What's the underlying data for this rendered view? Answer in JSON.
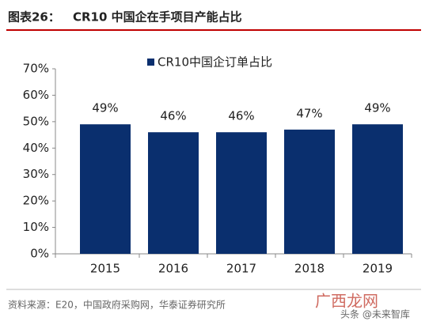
{
  "chart_data": {
    "type": "bar",
    "figure_label": "图表26：",
    "title": "CR10 中国企在手项目产能占比",
    "categories": [
      "2015",
      "2016",
      "2017",
      "2018",
      "2019"
    ],
    "series": [
      {
        "name": "CR10中国企订单占比",
        "color": "#0a2f6e",
        "values": [
          49,
          46,
          46,
          47,
          49
        ],
        "value_labels": [
          "49%",
          "46%",
          "46%",
          "47%",
          "49%"
        ]
      }
    ],
    "ylim": [
      0,
      70
    ],
    "yticks": [
      {
        "value": 0,
        "label": "0%"
      },
      {
        "value": 10,
        "label": "10%"
      },
      {
        "value": 20,
        "label": "20%"
      },
      {
        "value": 30,
        "label": "30%"
      },
      {
        "value": 40,
        "label": "40%"
      },
      {
        "value": 50,
        "label": "50%"
      },
      {
        "value": 60,
        "label": "60%"
      },
      {
        "value": 70,
        "label": "70%"
      }
    ],
    "legend": "top",
    "source": "资料来源：E20，中国政府采购网，华泰证券研究所",
    "watermarks": [
      "广西龙网",
      "头条 @未来智库"
    ]
  }
}
